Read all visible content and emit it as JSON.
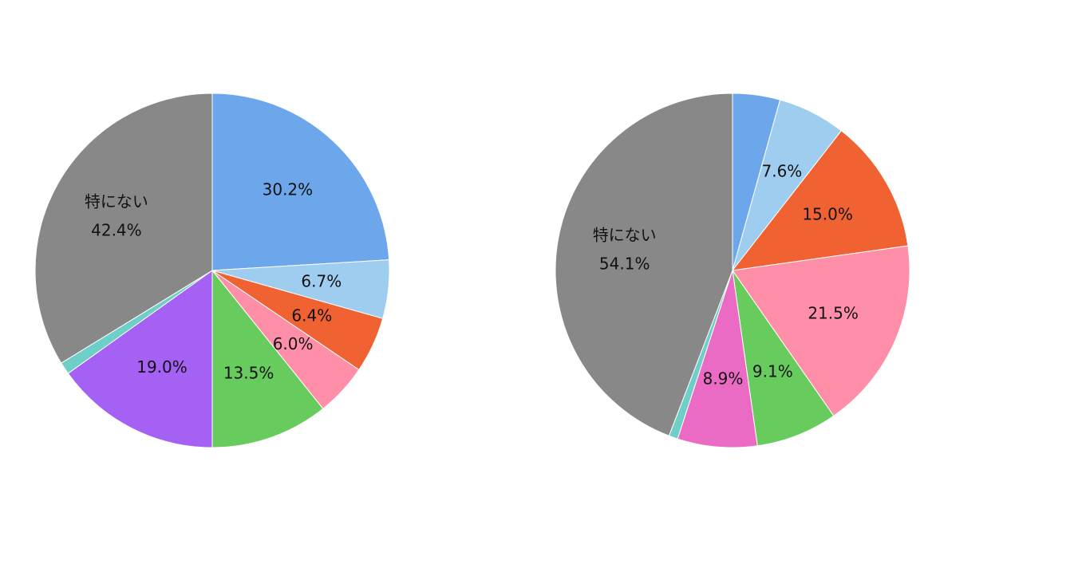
{
  "chart_data": [
    {
      "type": "pie",
      "start_angle_deg": 0,
      "direction": "clockwise",
      "slices": [
        {
          "value": 30.2,
          "label": "30.2%",
          "color": "#6CA6EB"
        },
        {
          "value": 6.7,
          "label": "6.7%",
          "color": "#9FCDF0"
        },
        {
          "value": 6.4,
          "label": "6.4%",
          "color": "#F06232"
        },
        {
          "value": 6.0,
          "label": "6.0%",
          "color": "#FF8FA8"
        },
        {
          "value": 13.5,
          "label": "13.5%",
          "color": "#68CB5E"
        },
        {
          "value": 19.0,
          "label": "19.0%",
          "color": "#A561F4"
        },
        {
          "value": 1.4,
          "label": "",
          "color": "#6DCFC7"
        },
        {
          "value": 42.4,
          "label_lines": [
            "特にない",
            "42.4%"
          ],
          "color": "#888888"
        }
      ]
    },
    {
      "type": "pie",
      "start_angle_deg": 0,
      "direction": "clockwise",
      "slices": [
        {
          "value": 5.3,
          "label": "",
          "color": "#6CA6EB"
        },
        {
          "value": 7.6,
          "label": "7.6%",
          "color": "#9FCDF0"
        },
        {
          "value": 15.0,
          "label": "15.0%",
          "color": "#F06232"
        },
        {
          "value": 21.5,
          "label": "21.5%",
          "color": "#FF8FA8"
        },
        {
          "value": 9.1,
          "label": "9.1%",
          "color": "#68CB5E"
        },
        {
          "value": 8.9,
          "label": "8.9%",
          "color": "#EB6AC3"
        },
        {
          "value": 1.0,
          "label": "",
          "color": "#6DCFC7"
        },
        {
          "value": 54.1,
          "label_lines": [
            "特にない",
            "54.1%"
          ],
          "color": "#888888"
        }
      ]
    }
  ]
}
